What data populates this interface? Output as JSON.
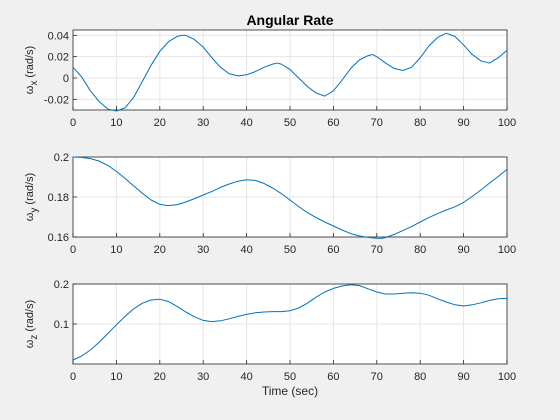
{
  "figure": {
    "background": "#f0f0f0",
    "line_color": "#0072bd"
  },
  "chart_data": [
    {
      "type": "line",
      "title": "Angular Rate",
      "ylabel": {
        "symbol": "ω",
        "sub": "x",
        "unit": " (rad/s)"
      },
      "xlabel": "",
      "xlim": [
        0,
        100
      ],
      "ylim": [
        -0.03,
        0.045
      ],
      "xticks": [
        "0",
        "10",
        "20",
        "30",
        "40",
        "50",
        "60",
        "70",
        "80",
        "90",
        "100"
      ],
      "yticks": [
        {
          "value": -0.02,
          "label": "-0.02"
        },
        {
          "value": 0,
          "label": "0"
        },
        {
          "value": 0.02,
          "label": "0.02"
        },
        {
          "value": 0.04,
          "label": "0.04"
        }
      ],
      "grid": true,
      "series": [
        {
          "x": [
            0,
            2,
            4,
            6,
            8,
            10,
            12,
            14,
            16,
            18,
            20,
            22,
            24,
            25,
            26,
            28,
            30,
            32,
            34,
            36,
            38,
            40,
            42,
            44,
            46,
            47,
            48,
            50,
            52,
            54,
            56,
            58,
            60,
            62,
            64,
            66,
            68,
            69,
            70,
            72,
            74,
            76,
            78,
            80,
            82,
            84,
            86,
            88,
            90,
            92,
            94,
            96,
            98,
            100
          ],
          "y": [
            0.01,
            0.001,
            -0.012,
            -0.022,
            -0.029,
            -0.031,
            -0.028,
            -0.018,
            -0.003,
            0.012,
            0.025,
            0.034,
            0.039,
            0.04,
            0.04,
            0.036,
            0.029,
            0.019,
            0.01,
            0.004,
            0.002,
            0.003,
            0.006,
            0.01,
            0.013,
            0.014,
            0.013,
            0.008,
            0.0,
            -0.008,
            -0.014,
            -0.017,
            -0.012,
            -0.002,
            0.009,
            0.017,
            0.021,
            0.022,
            0.02,
            0.014,
            0.009,
            0.007,
            0.01,
            0.019,
            0.03,
            0.038,
            0.042,
            0.039,
            0.031,
            0.022,
            0.016,
            0.014,
            0.019,
            0.026
          ]
        }
      ]
    },
    {
      "type": "line",
      "title": "",
      "ylabel": {
        "symbol": "ω",
        "sub": "y",
        "unit": " (rad/s)"
      },
      "xlabel": "",
      "xlim": [
        0,
        100
      ],
      "ylim": [
        0.16,
        0.2
      ],
      "xticks": [
        "0",
        "10",
        "20",
        "30",
        "40",
        "50",
        "60",
        "70",
        "80",
        "90",
        "100"
      ],
      "yticks": [
        {
          "value": 0.16,
          "label": "0.16"
        },
        {
          "value": 0.18,
          "label": "0.18"
        },
        {
          "value": 0.2,
          "label": "0.2"
        }
      ],
      "grid": true,
      "series": [
        {
          "x": [
            0,
            2,
            4,
            6,
            8,
            10,
            12,
            14,
            16,
            18,
            20,
            22,
            24,
            26,
            28,
            30,
            32,
            34,
            36,
            38,
            40,
            42,
            44,
            46,
            48,
            50,
            52,
            54,
            56,
            58,
            60,
            62,
            64,
            66,
            68,
            70,
            71,
            72,
            74,
            76,
            78,
            80,
            82,
            84,
            86,
            88,
            90,
            92,
            94,
            96,
            98,
            100
          ],
          "y": [
            0.2,
            0.1998,
            0.1992,
            0.198,
            0.1958,
            0.1928,
            0.1893,
            0.1855,
            0.1818,
            0.1785,
            0.1763,
            0.1757,
            0.1762,
            0.1775,
            0.1792,
            0.181,
            0.1828,
            0.1848,
            0.1865,
            0.1879,
            0.1886,
            0.1883,
            0.1868,
            0.1845,
            0.1817,
            0.1785,
            0.1752,
            0.1722,
            0.1697,
            0.1675,
            0.1655,
            0.1635,
            0.1617,
            0.1605,
            0.1598,
            0.1594,
            0.1593,
            0.1597,
            0.1613,
            0.1632,
            0.1652,
            0.1675,
            0.1697,
            0.1717,
            0.1735,
            0.1751,
            0.1773,
            0.1803,
            0.1835,
            0.187,
            0.1903,
            0.1938
          ]
        }
      ]
    },
    {
      "type": "line",
      "title": "",
      "ylabel": {
        "symbol": "ω",
        "sub": "z",
        "unit": " (rad/s)"
      },
      "xlabel": "Time (sec)",
      "xlim": [
        0,
        100
      ],
      "ylim": [
        0,
        0.2
      ],
      "xticks": [
        "0",
        "10",
        "20",
        "30",
        "40",
        "50",
        "60",
        "70",
        "80",
        "90",
        "100"
      ],
      "yticks": [
        {
          "value": 0.1,
          "label": "0.1"
        },
        {
          "value": 0.2,
          "label": "0.2"
        }
      ],
      "grid": true,
      "series": [
        {
          "x": [
            0,
            2,
            4,
            6,
            8,
            10,
            12,
            14,
            16,
            18,
            20,
            22,
            24,
            26,
            28,
            30,
            32,
            34,
            36,
            38,
            40,
            42,
            44,
            46,
            48,
            50,
            52,
            54,
            56,
            58,
            60,
            62,
            64,
            66,
            68,
            70,
            72,
            74,
            76,
            78,
            80,
            82,
            84,
            86,
            88,
            90,
            92,
            94,
            96,
            98,
            100
          ],
          "y": [
            0.01,
            0.02,
            0.035,
            0.054,
            0.076,
            0.098,
            0.119,
            0.138,
            0.152,
            0.16,
            0.162,
            0.156,
            0.144,
            0.13,
            0.118,
            0.109,
            0.106,
            0.108,
            0.113,
            0.119,
            0.124,
            0.128,
            0.13,
            0.131,
            0.131,
            0.133,
            0.14,
            0.152,
            0.167,
            0.18,
            0.189,
            0.195,
            0.198,
            0.196,
            0.188,
            0.18,
            0.175,
            0.175,
            0.177,
            0.178,
            0.177,
            0.172,
            0.163,
            0.155,
            0.148,
            0.145,
            0.148,
            0.153,
            0.159,
            0.163,
            0.164
          ]
        }
      ]
    }
  ]
}
